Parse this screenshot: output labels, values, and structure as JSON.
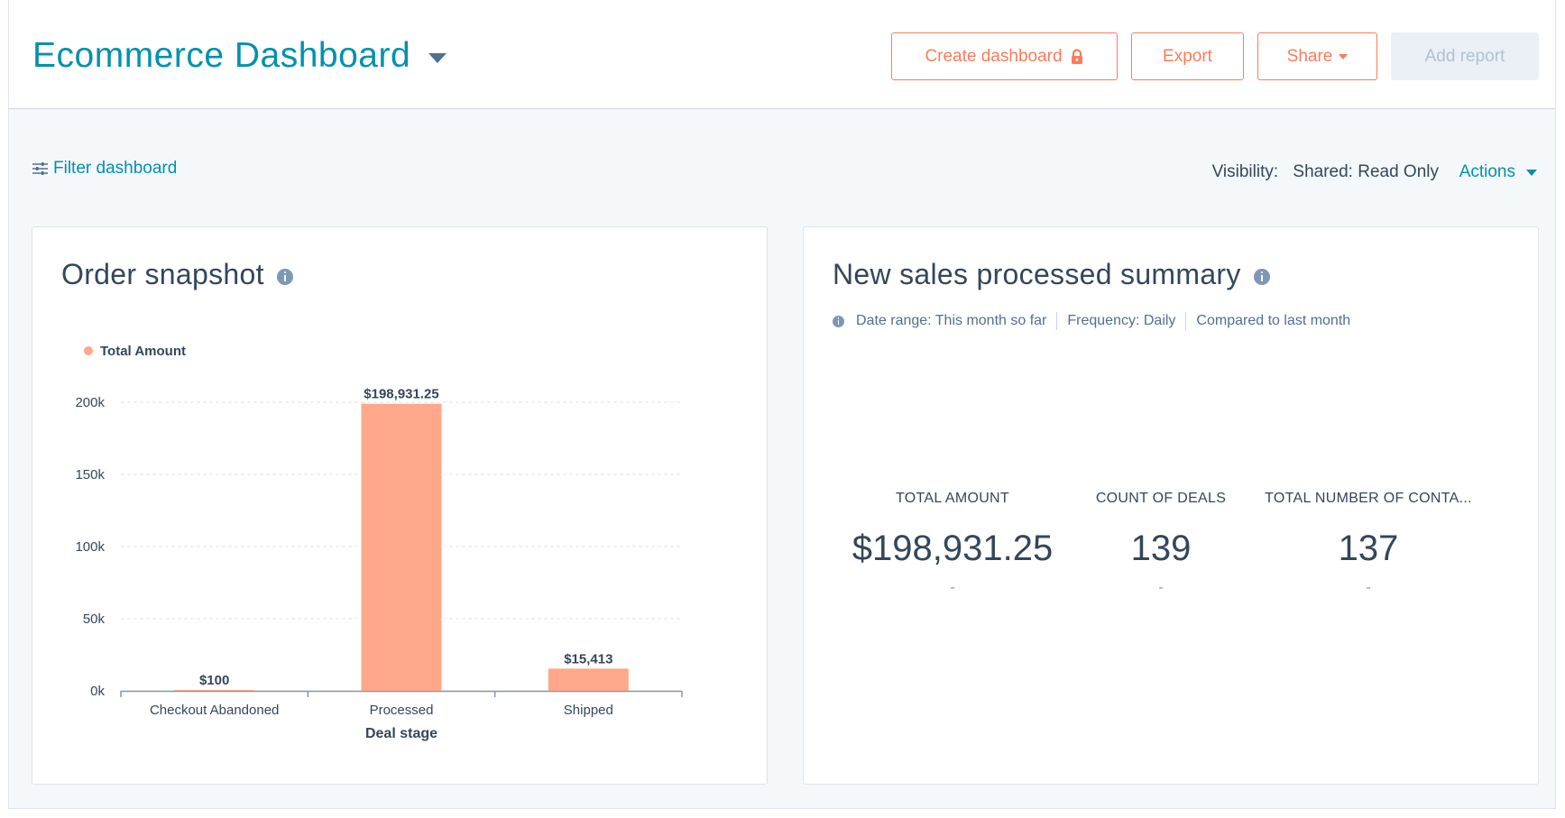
{
  "header": {
    "title": "Ecommerce Dashboard",
    "buttons": {
      "create": "Create dashboard",
      "export": "Export",
      "share": "Share",
      "add_report": "Add report"
    }
  },
  "toolbar": {
    "filter_label": "Filter dashboard",
    "visibility_label": "Visibility:",
    "visibility_value": "Shared: Read Only",
    "actions_label": "Actions"
  },
  "order_snapshot": {
    "title": "Order snapshot"
  },
  "chart_data": {
    "type": "bar",
    "title": "",
    "xlabel": "Deal stage",
    "ylabel": "",
    "categories": [
      "Checkout Abandoned",
      "Processed",
      "Shipped"
    ],
    "series": [
      {
        "name": "Total Amount",
        "values": [
          100,
          198931.25,
          15413
        ],
        "labels": [
          "$100",
          "$198,931.25",
          "$15,413"
        ],
        "color": "#ffa78a"
      }
    ],
    "ylim": [
      0,
      200000
    ],
    "yticks": [
      0,
      50000,
      100000,
      150000,
      200000
    ],
    "ytick_labels": [
      "0k",
      "50k",
      "100k",
      "150k",
      "200k"
    ],
    "grid": true,
    "legend": "top-left"
  },
  "sales_summary": {
    "title": "New sales processed summary",
    "meta": {
      "date_range": "Date range: This month so far",
      "frequency": "Frequency: Daily",
      "compared": "Compared to last month"
    },
    "kpis": [
      {
        "label": "TOTAL AMOUNT",
        "value": "$198,931.25",
        "delta": "-"
      },
      {
        "label": "COUNT OF DEALS",
        "value": "139",
        "delta": "-"
      },
      {
        "label": "TOTAL NUMBER OF CONTA...",
        "value": "137",
        "delta": "-"
      }
    ]
  },
  "colors": {
    "accent": "#ff7a59",
    "link": "#0091ae",
    "bar": "#ffa78a",
    "text": "#33475b"
  }
}
